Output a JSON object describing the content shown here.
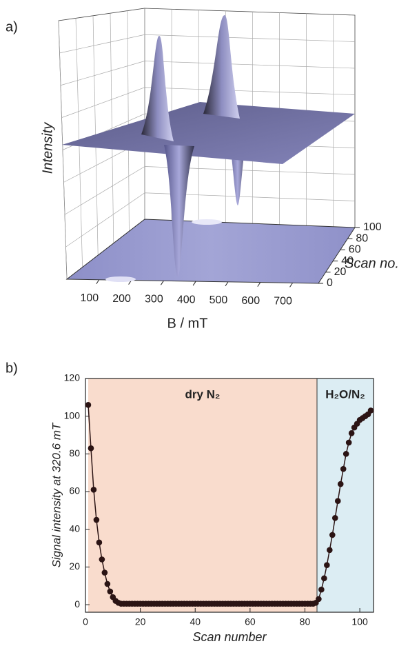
{
  "chart_data": [
    {
      "type": "surface3d",
      "label": "a)",
      "xlabel": "B / mT",
      "ylabel": "Intensity",
      "zlabel": "Scan no.",
      "xlim": [
        0,
        780
      ],
      "xticks": [
        100,
        200,
        300,
        400,
        500,
        600,
        700
      ],
      "zlim": [
        0,
        100
      ],
      "zticks": [
        0,
        20,
        40,
        60,
        80,
        100
      ],
      "color": "#7c7cb8"
    },
    {
      "type": "line",
      "label": "b)",
      "xlabel": "Scan number",
      "ylabel": "Signal intensity at 320.6 mT",
      "xlim": [
        0,
        105
      ],
      "xticks": [
        0,
        20,
        40,
        60,
        80,
        100
      ],
      "ylim": [
        -4,
        120
      ],
      "yticks": [
        0,
        20,
        40,
        60,
        80,
        100,
        120
      ],
      "regions": [
        {
          "label": "dry N₂",
          "xlim": [
            1,
            84.4
          ],
          "color": "#f9dccd"
        },
        {
          "label": "H₂O/N₂",
          "xlim": [
            84.4,
            105
          ],
          "color": "#dcedf3"
        }
      ],
      "x": [
        1,
        2,
        3,
        4,
        5,
        6,
        7,
        8,
        9,
        10,
        11,
        12,
        13,
        14,
        15,
        16,
        17,
        18,
        19,
        20,
        21,
        22,
        23,
        24,
        25,
        26,
        27,
        28,
        29,
        30,
        31,
        32,
        33,
        34,
        35,
        36,
        37,
        38,
        39,
        40,
        41,
        42,
        43,
        44,
        45,
        46,
        47,
        48,
        49,
        50,
        51,
        52,
        53,
        54,
        55,
        56,
        57,
        58,
        59,
        60,
        61,
        62,
        63,
        64,
        65,
        66,
        67,
        68,
        69,
        70,
        71,
        72,
        73,
        74,
        75,
        76,
        77,
        78,
        79,
        80,
        81,
        82,
        83,
        84,
        85,
        86,
        87,
        88,
        89,
        90,
        91,
        92,
        93,
        94,
        95,
        96,
        97,
        98,
        99,
        100,
        101,
        102,
        103,
        104
      ],
      "series": [
        {
          "color": "#2b1414",
          "values": [
            106,
            83,
            61,
            45,
            33,
            24,
            17,
            11,
            7,
            4,
            2,
            1,
            0.5,
            0.5,
            0.5,
            0.5,
            0.5,
            0.5,
            0.5,
            0.5,
            0.5,
            0.5,
            0.5,
            0.5,
            0.5,
            0.5,
            0.5,
            0.5,
            0.5,
            0.5,
            0.5,
            0.5,
            0.5,
            0.5,
            0.5,
            0.5,
            0.5,
            0.5,
            0.5,
            0.5,
            0.5,
            0.5,
            0.5,
            0.5,
            0.5,
            0.5,
            0.5,
            0.5,
            0.5,
            0.5,
            0.5,
            0.5,
            0.5,
            0.5,
            0.5,
            0.5,
            0.5,
            0.5,
            0.5,
            0.5,
            0.5,
            0.5,
            0.5,
            0.5,
            0.5,
            0.5,
            0.5,
            0.5,
            0.5,
            0.5,
            0.5,
            0.5,
            0.5,
            0.5,
            0.5,
            0.5,
            0.5,
            0.5,
            0.5,
            0.5,
            0.5,
            0.5,
            0.5,
            1,
            3,
            8,
            14,
            21,
            29,
            37,
            46,
            55,
            64,
            72,
            80,
            86,
            91,
            94,
            96,
            98,
            99,
            100,
            101,
            103
          ]
        }
      ]
    }
  ]
}
